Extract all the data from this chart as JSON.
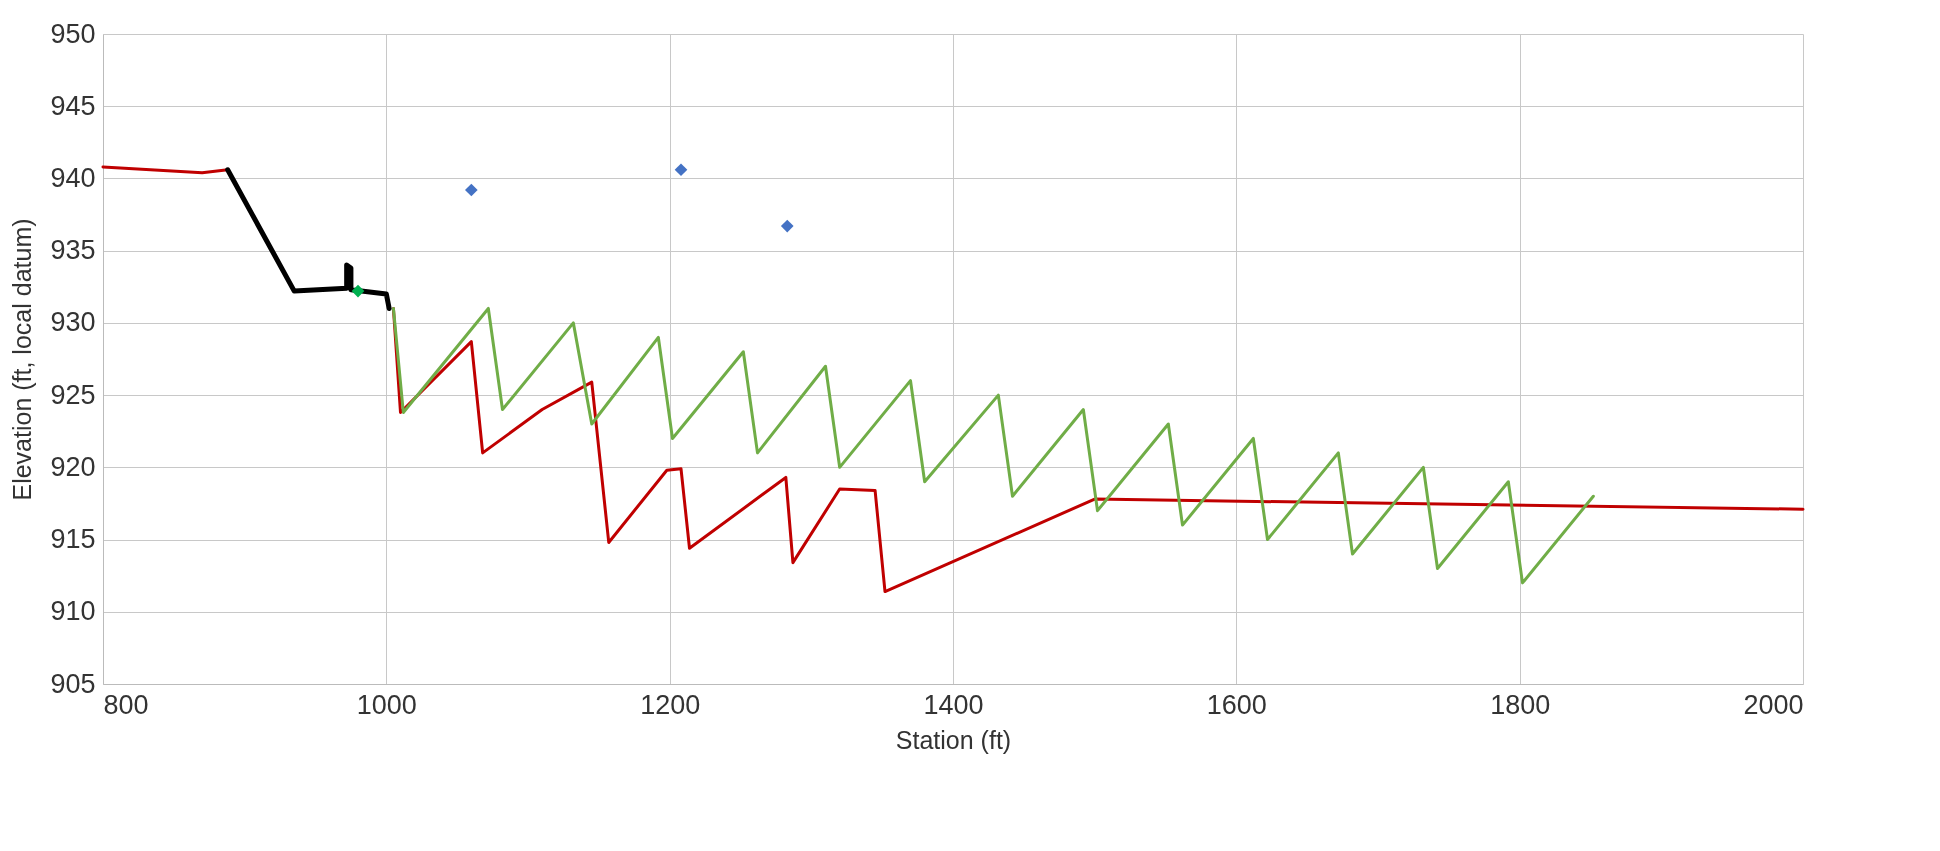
{
  "chart_data": {
    "type": "line",
    "xlabel": "Station (ft)",
    "ylabel": "Elevation (ft, local datum)",
    "xlim": [
      800,
      2000
    ],
    "ylim": [
      905,
      950
    ],
    "xticks": [
      800,
      1000,
      1200,
      1400,
      1600,
      1800,
      2000
    ],
    "yticks": [
      905,
      910,
      915,
      920,
      925,
      930,
      935,
      940,
      945,
      950
    ],
    "grid": true,
    "marker": "none",
    "line_style": "solid",
    "series": [
      {
        "color": "#c00000",
        "x": [
          800,
          870,
          888,
          null,
          1005,
          1010,
          1060,
          1068,
          1110,
          1145,
          1157,
          1198,
          1208,
          1214,
          1282,
          1287,
          1320,
          1345,
          1352,
          1500,
          2000
        ],
        "values": [
          940.8,
          940.4,
          940.6,
          null,
          931,
          923.8,
          928.7,
          921,
          924,
          925.9,
          914.8,
          919.8,
          919.9,
          914.4,
          919.3,
          913.4,
          918.5,
          918.4,
          911.4,
          917.8,
          917.1
        ]
      },
      {
        "color": "#70ad47",
        "x": [
          1005,
          1012,
          1072,
          1082,
          1132,
          1145,
          1192,
          1202,
          1252,
          1262,
          1310,
          1320,
          1370,
          1380,
          1432,
          1442,
          1492,
          1502,
          1552,
          1562,
          1612,
          1622,
          1672,
          1682,
          1732,
          1742,
          1792,
          1802,
          1852
        ],
        "values": [
          931,
          923.8,
          931,
          924,
          930,
          923,
          929,
          922,
          928,
          921,
          927,
          920,
          926,
          919,
          925,
          918,
          924,
          917,
          923,
          916,
          922,
          915,
          921,
          914,
          920,
          913,
          919,
          912,
          918
        ]
      },
      {
        "color": "#000000",
        "x": [
          888,
          935,
          972,
          972,
          975,
          975,
          1000,
          1002
        ],
        "values": [
          940.6,
          932.2,
          932.4,
          934,
          933.8,
          932.3,
          932,
          931
        ]
      },
      {
        "type": "scatter",
        "marker": "diamond",
        "color": "#00b050",
        "x": [
          980
        ],
        "values": [
          932.2
        ]
      },
      {
        "type": "scatter",
        "marker": "diamond",
        "color": "#4472c4",
        "x": [
          1060,
          1208,
          1283
        ],
        "values": [
          939.2,
          940.6,
          936.7
        ]
      }
    ]
  }
}
